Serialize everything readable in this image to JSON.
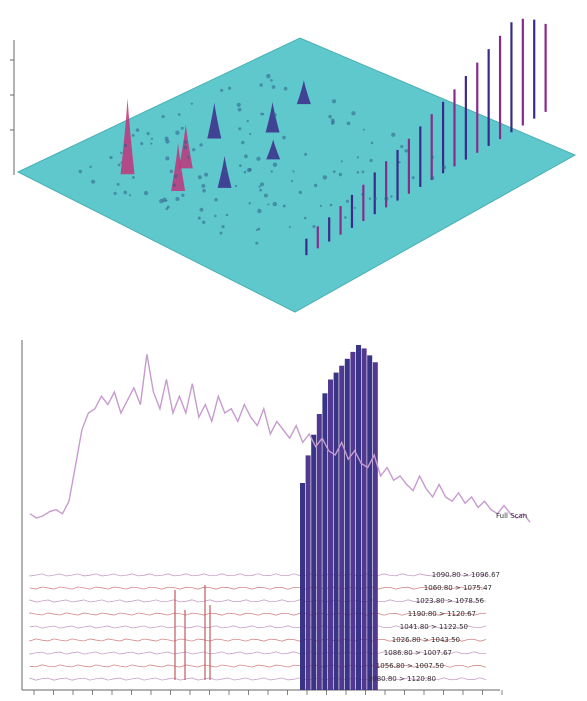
{
  "chart_data": [
    {
      "type": "surface3d",
      "description_level": "visual",
      "plane_color": "#5fc8cc",
      "peak_colors": [
        "#3b2a8a",
        "#8a2a8a",
        "#c0357a"
      ],
      "front_ridge_heights": [
        0.15,
        0.2,
        0.22,
        0.26,
        0.3,
        0.33,
        0.38,
        0.42,
        0.46,
        0.5,
        0.55,
        0.6,
        0.65,
        0.7,
        0.76,
        0.82,
        0.88,
        0.94,
        1.0,
        0.97,
        0.9,
        0.8
      ],
      "blobs": [
        {
          "row": 0.2,
          "col": 0.12,
          "h": 0.95
        },
        {
          "row": 0.35,
          "col": 0.14,
          "h": 0.6
        },
        {
          "row": 0.28,
          "col": 0.2,
          "h": 0.55
        },
        {
          "row": 0.42,
          "col": 0.2,
          "h": 0.4
        },
        {
          "row": 0.22,
          "col": 0.3,
          "h": 0.45
        },
        {
          "row": 0.3,
          "col": 0.38,
          "h": 0.38
        },
        {
          "row": 0.25,
          "col": 0.48,
          "h": 0.3
        },
        {
          "row": 0.4,
          "col": 0.32,
          "h": 0.25
        }
      ]
    },
    {
      "type": "line",
      "trace_label": "Full Scan",
      "trace_color": "#c79bcf",
      "trace_values": [
        0.22,
        0.2,
        0.21,
        0.23,
        0.24,
        0.22,
        0.28,
        0.45,
        0.62,
        0.7,
        0.72,
        0.78,
        0.74,
        0.8,
        0.7,
        0.76,
        0.82,
        0.74,
        0.98,
        0.8,
        0.72,
        0.86,
        0.7,
        0.78,
        0.7,
        0.84,
        0.68,
        0.74,
        0.66,
        0.78,
        0.7,
        0.72,
        0.66,
        0.74,
        0.68,
        0.64,
        0.72,
        0.6,
        0.66,
        0.62,
        0.58,
        0.64,
        0.56,
        0.6,
        0.54,
        0.58,
        0.52,
        0.5,
        0.56,
        0.48,
        0.52,
        0.46,
        0.44,
        0.5,
        0.4,
        0.44,
        0.38,
        0.4,
        0.36,
        0.33,
        0.4,
        0.34,
        0.3,
        0.36,
        0.3,
        0.28,
        0.32,
        0.27,
        0.3,
        0.25,
        0.28,
        0.24,
        0.22,
        0.26,
        0.22,
        0.2,
        0.22,
        0.18
      ],
      "bar_heights": [
        0.6,
        0.68,
        0.74,
        0.8,
        0.86,
        0.9,
        0.92,
        0.94,
        0.96,
        0.98,
        1.0,
        0.99,
        0.97,
        0.95
      ],
      "stacked_traces": 9,
      "trace_labels": [
        "1090.80 > 1096.67",
        "1060.80 > 1075.47",
        "1023.80 > 1078.56",
        "1190.80 > 1120.67",
        "1041.80 > 1122.50",
        "1026.80 > 1043.50",
        "1086.80 > 1007.67",
        "1056.80 > 1007.50",
        "1080.80 > 1120.80"
      ]
    }
  ]
}
